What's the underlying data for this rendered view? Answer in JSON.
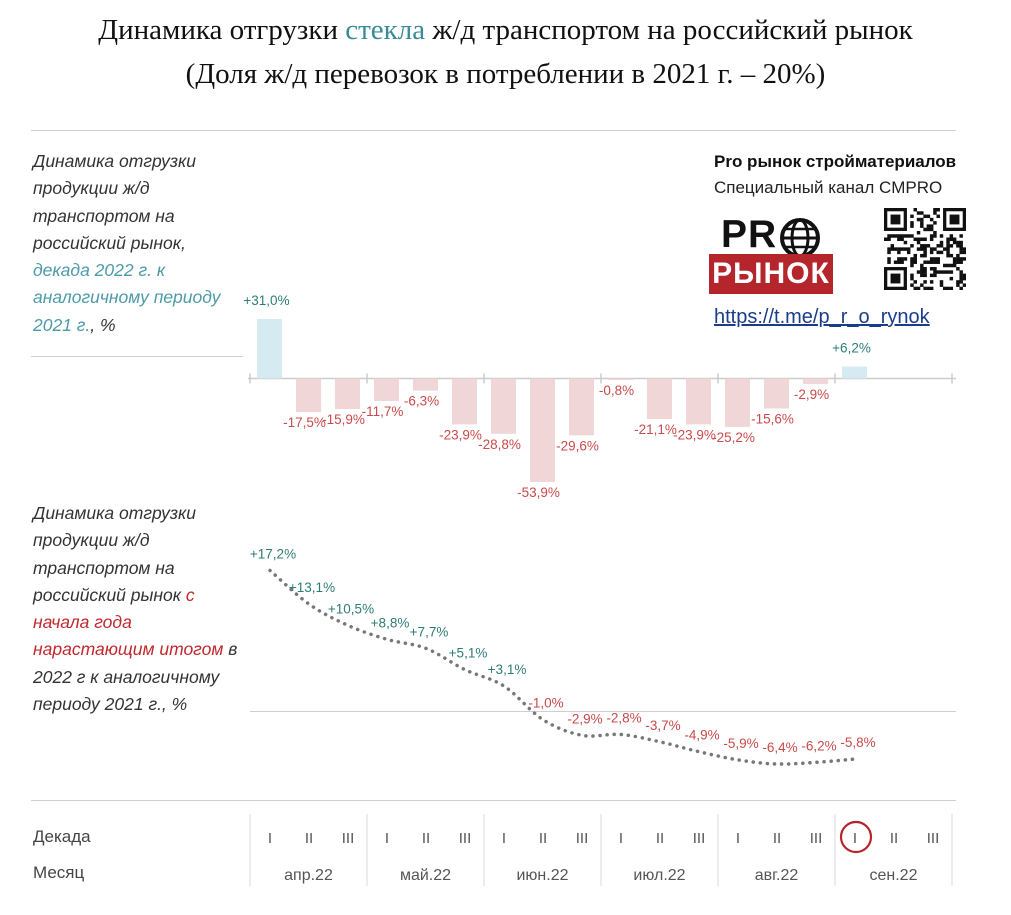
{
  "header": {
    "title_pre": "Динамика отгрузки ",
    "title_accent": "стекла",
    "title_post": " ж/д транспортом на российский рынок",
    "subtitle": "(Доля ж/д перевозок в потреблении в 2021 г. – 20%)"
  },
  "side_top": {
    "line1": "Динамика отгрузки продукции ж/д транспортом на российский рынок,",
    "highlight": "декада 2022 г. к аналогичному периоду 2021 г.",
    "line2": ", %"
  },
  "side_bottom": {
    "line1": "Динамика отгрузки продукции ж/д транспортом на российский рынок",
    "highlight": "с начала года нарастающим итогом",
    "line2": " в 2022 г к аналогичному периоду 2021 г., %"
  },
  "brand": {
    "name": "Pro рынок стройматериалов",
    "channel": "Специальный канал CMPRO",
    "logo_pro": "PR",
    "logo_rynok": "РЫНОК",
    "link": "https://t.me/p_r_o_rynok"
  },
  "axis": {
    "decade_label": "Декада",
    "month_label": "Месяц",
    "decades": [
      "I",
      "II",
      "III",
      "I",
      "II",
      "III",
      "I",
      "II",
      "III",
      "I",
      "II",
      "III",
      "I",
      "II",
      "III",
      "I",
      "II",
      "III"
    ],
    "months": [
      "апр.22",
      "май.22",
      "июн.22",
      "июл.22",
      "авг.22",
      "сен.22"
    ],
    "highlight_index": 15
  },
  "colors": {
    "positive_bar": "#d6eaf2",
    "negative_bar": "#f0d6d6",
    "positive_text": "#2e7d74",
    "negative_text": "#c94a4a",
    "line": "#777777",
    "highlight_circle": "#b5262c"
  },
  "chart_data": [
    {
      "type": "bar",
      "categories": [
        "I апр.22",
        "II апр.22",
        "III апр.22",
        "I май.22",
        "II май.22",
        "III май.22",
        "I июн.22",
        "II июн.22",
        "III июн.22",
        "I июл.22",
        "II июл.22",
        "III июл.22",
        "I авг.22",
        "II авг.22",
        "III авг.22",
        "I сен.22"
      ],
      "values": [
        31.0,
        -17.5,
        -15.9,
        -11.7,
        -6.3,
        -23.9,
        -28.8,
        -53.9,
        -29.6,
        -0.8,
        -21.1,
        -23.9,
        -25.2,
        -15.6,
        -2.9,
        6.2
      ],
      "labels": [
        "+31,0%",
        "-17,5%",
        "-15,9%",
        "-11,7%",
        "-6,3%",
        "-23,9%",
        "-28,8%",
        "-53,9%",
        "-29,6%",
        "-0,8%",
        "-21,1%",
        "-23,9%",
        "-25,2%",
        "-15,6%",
        "-2,9%",
        "+6,2%"
      ]
    },
    {
      "type": "line",
      "categories": [
        "I апр.22",
        "II апр.22",
        "III апр.22",
        "I май.22",
        "II май.22",
        "III май.22",
        "I июн.22",
        "II июн.22",
        "III июн.22",
        "I июл.22",
        "II июл.22",
        "III июл.22",
        "I авг.22",
        "II авг.22",
        "III авг.22",
        "I сен.22"
      ],
      "values": [
        17.2,
        13.1,
        10.5,
        8.8,
        7.7,
        5.1,
        3.1,
        -1.0,
        -2.9,
        -2.8,
        -3.7,
        -4.9,
        -5.9,
        -6.4,
        -6.2,
        -5.8
      ],
      "labels": [
        "+17,2%",
        "+13,1%",
        "+10,5%",
        "+8,8%",
        "+7,7%",
        "+5,1%",
        "+3,1%",
        "-1,0%",
        "-2,9%",
        "-2,8%",
        "-3,7%",
        "-4,9%",
        "-5,9%",
        "-6,4%",
        "-6,2%",
        "-5,8%"
      ]
    }
  ]
}
